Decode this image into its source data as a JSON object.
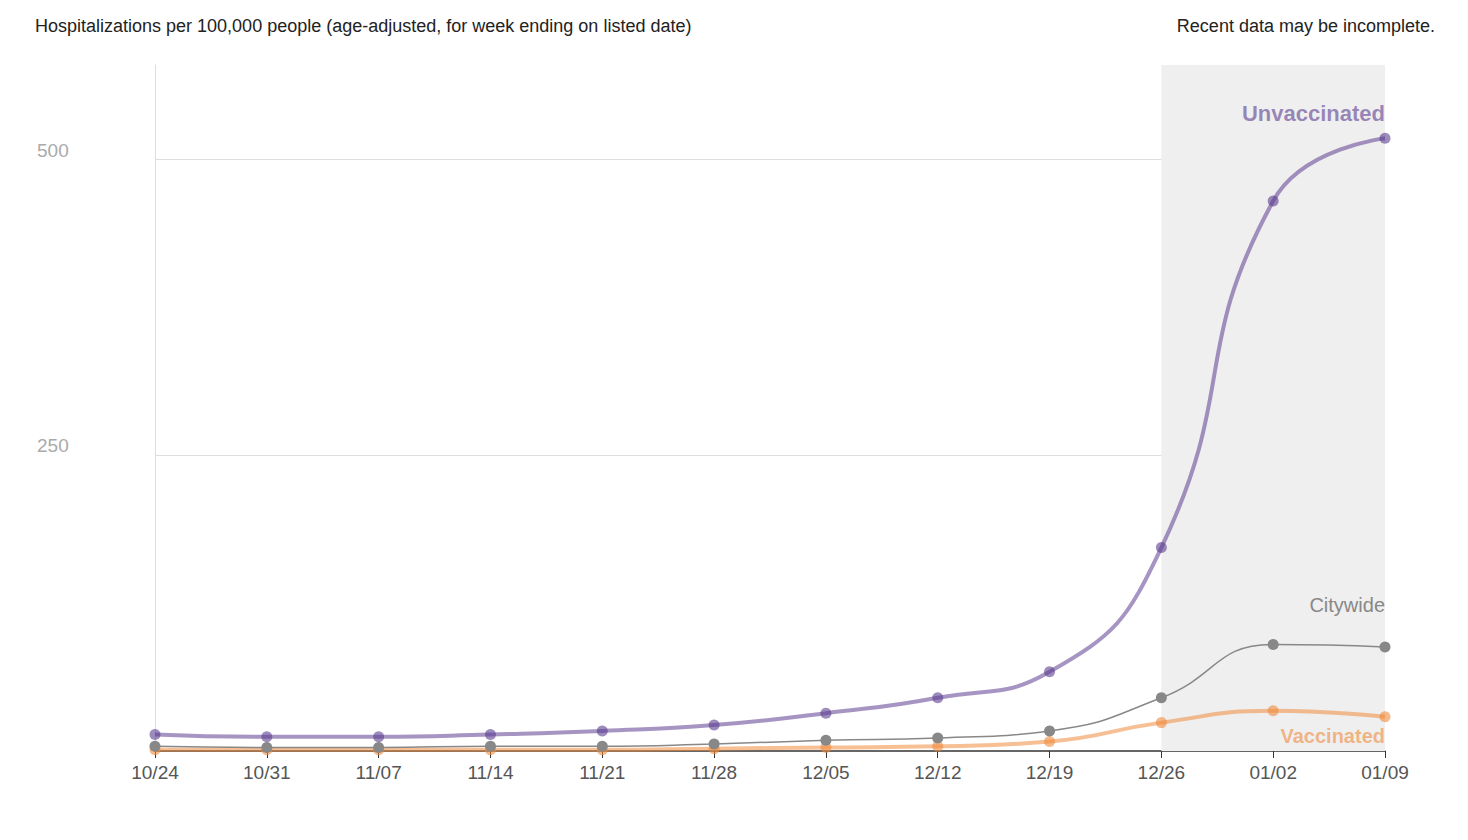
{
  "chart_data": {
    "type": "line",
    "title": "Hospitalizations per 100,000 people (age-adjusted, for week ending on listed date)",
    "annotations": [
      {
        "text": "Recent data may be incomplete.",
        "x_start": "12/26",
        "x_end": "01/09"
      }
    ],
    "categories": [
      "10/24",
      "10/31",
      "11/07",
      "11/14",
      "11/21",
      "11/28",
      "12/05",
      "12/12",
      "12/19",
      "12/26",
      "01/02",
      "01/09"
    ],
    "series": [
      {
        "name": "Unvaccinated",
        "color": "#5c3d8f",
        "values": [
          14,
          12,
          12,
          14,
          17,
          22,
          32,
          45,
          67,
          172,
          465,
          518
        ]
      },
      {
        "name": "Citywide",
        "color": "#888888",
        "values": [
          4,
          3,
          3,
          4,
          4,
          6,
          9,
          11,
          17,
          45,
          90,
          88
        ]
      },
      {
        "name": "Vaccinated",
        "color": "#f08a3c",
        "values": [
          1,
          1,
          1,
          1,
          1,
          2,
          3,
          4,
          8,
          24,
          34,
          29
        ]
      }
    ],
    "ylim": [
      0,
      580
    ],
    "yticks": [
      250,
      500
    ],
    "grid": true,
    "marker": "circle"
  }
}
